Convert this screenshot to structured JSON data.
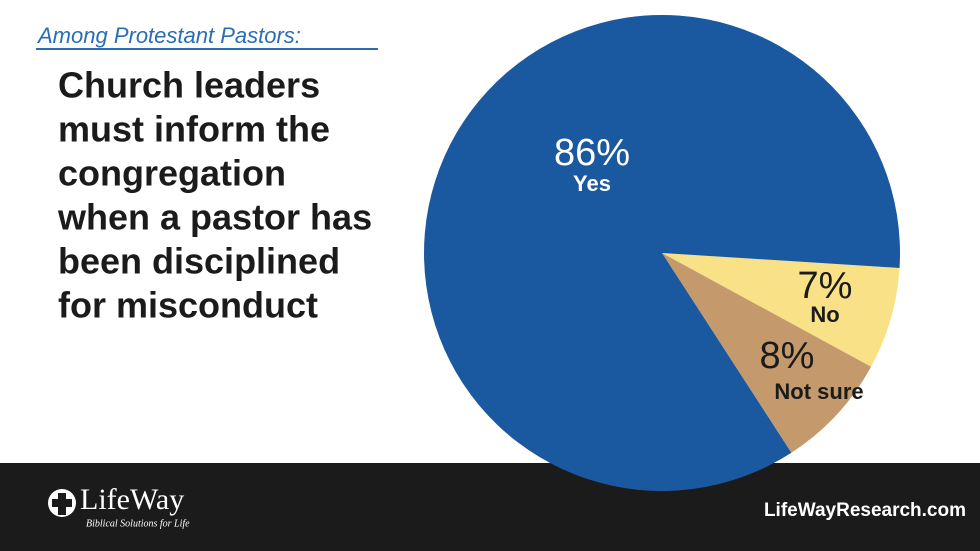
{
  "chart_data": {
    "type": "pie",
    "subtitle": "Among Protestant Pastors:",
    "title_lines": [
      "Church leaders",
      "must inform the",
      "congregation",
      "when a pastor has",
      "been disciplined",
      "for misconduct"
    ],
    "categories": [
      "Yes",
      "No",
      "Not sure"
    ],
    "values": [
      86,
      7,
      8
    ],
    "value_labels": [
      "86%",
      "7%",
      "8%"
    ],
    "colors": [
      "#1a58a0",
      "#f8e187",
      "#c49a6c"
    ],
    "logo": "LifeWay",
    "tagline": "Biblical Solutions for Life",
    "website": "LifeWayResearch.com"
  }
}
